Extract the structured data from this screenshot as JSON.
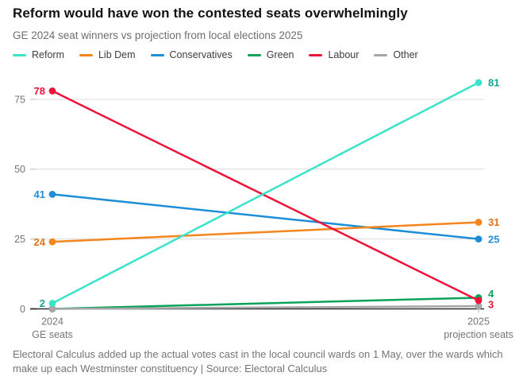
{
  "header": {
    "title": "Reform would have won the contested seats overwhelmingly",
    "subtitle": "GE 2024 seat winners vs projection from local elections 2025"
  },
  "chart_data": {
    "type": "line",
    "subtype": "slopegraph",
    "grid": true,
    "legend_position": "top",
    "colors": {
      "grid_line": "#dcdcdc",
      "zero_axis": "#2e2e2e",
      "tick_mark": "#c4c4c4",
      "tick_text": "#767676"
    },
    "y_ticks": [
      0,
      25,
      50,
      75
    ],
    "ylim": [
      0,
      83
    ],
    "x_axis": {
      "labels": [
        [
          "2024",
          "GE seats"
        ],
        [
          "2025",
          "projection seats"
        ]
      ]
    },
    "series": [
      {
        "name": "Reform",
        "color": "#3be3c9",
        "label_color": "#15a396",
        "values": [
          2,
          81
        ],
        "labels": {
          "start": "2",
          "end": "81"
        }
      },
      {
        "name": "Lib Dem",
        "color": "#f3861c",
        "label_color": "#e0731a",
        "values": [
          24,
          31
        ],
        "labels": {
          "start": "24",
          "end": "31"
        }
      },
      {
        "name": "Conservatives",
        "color": "#1e8fd6",
        "label_color": "#1e8fd6",
        "values": [
          41,
          25
        ],
        "labels": {
          "start": "41",
          "end": "25"
        }
      },
      {
        "name": "Green",
        "color": "#0aa35c",
        "label_color": "#0aa35c",
        "values": [
          0,
          4
        ],
        "labels": {
          "start": null,
          "end": "4"
        }
      },
      {
        "name": "Labour",
        "color": "#ed1438",
        "label_color": "#ed1438",
        "values": [
          78,
          3
        ],
        "labels": {
          "start": "78",
          "end": "3"
        }
      },
      {
        "name": "Other",
        "color": "#a6a6a6",
        "label_color": "#a6a6a6",
        "values": [
          0,
          1
        ],
        "labels": {
          "start": null,
          "end": null
        }
      }
    ]
  },
  "footer": {
    "note": "Electoral Calculus added up the actual votes cast in the local council wards on 1 May, over the wards which make up each Westminster constituency | Source: Electoral Calculus"
  }
}
